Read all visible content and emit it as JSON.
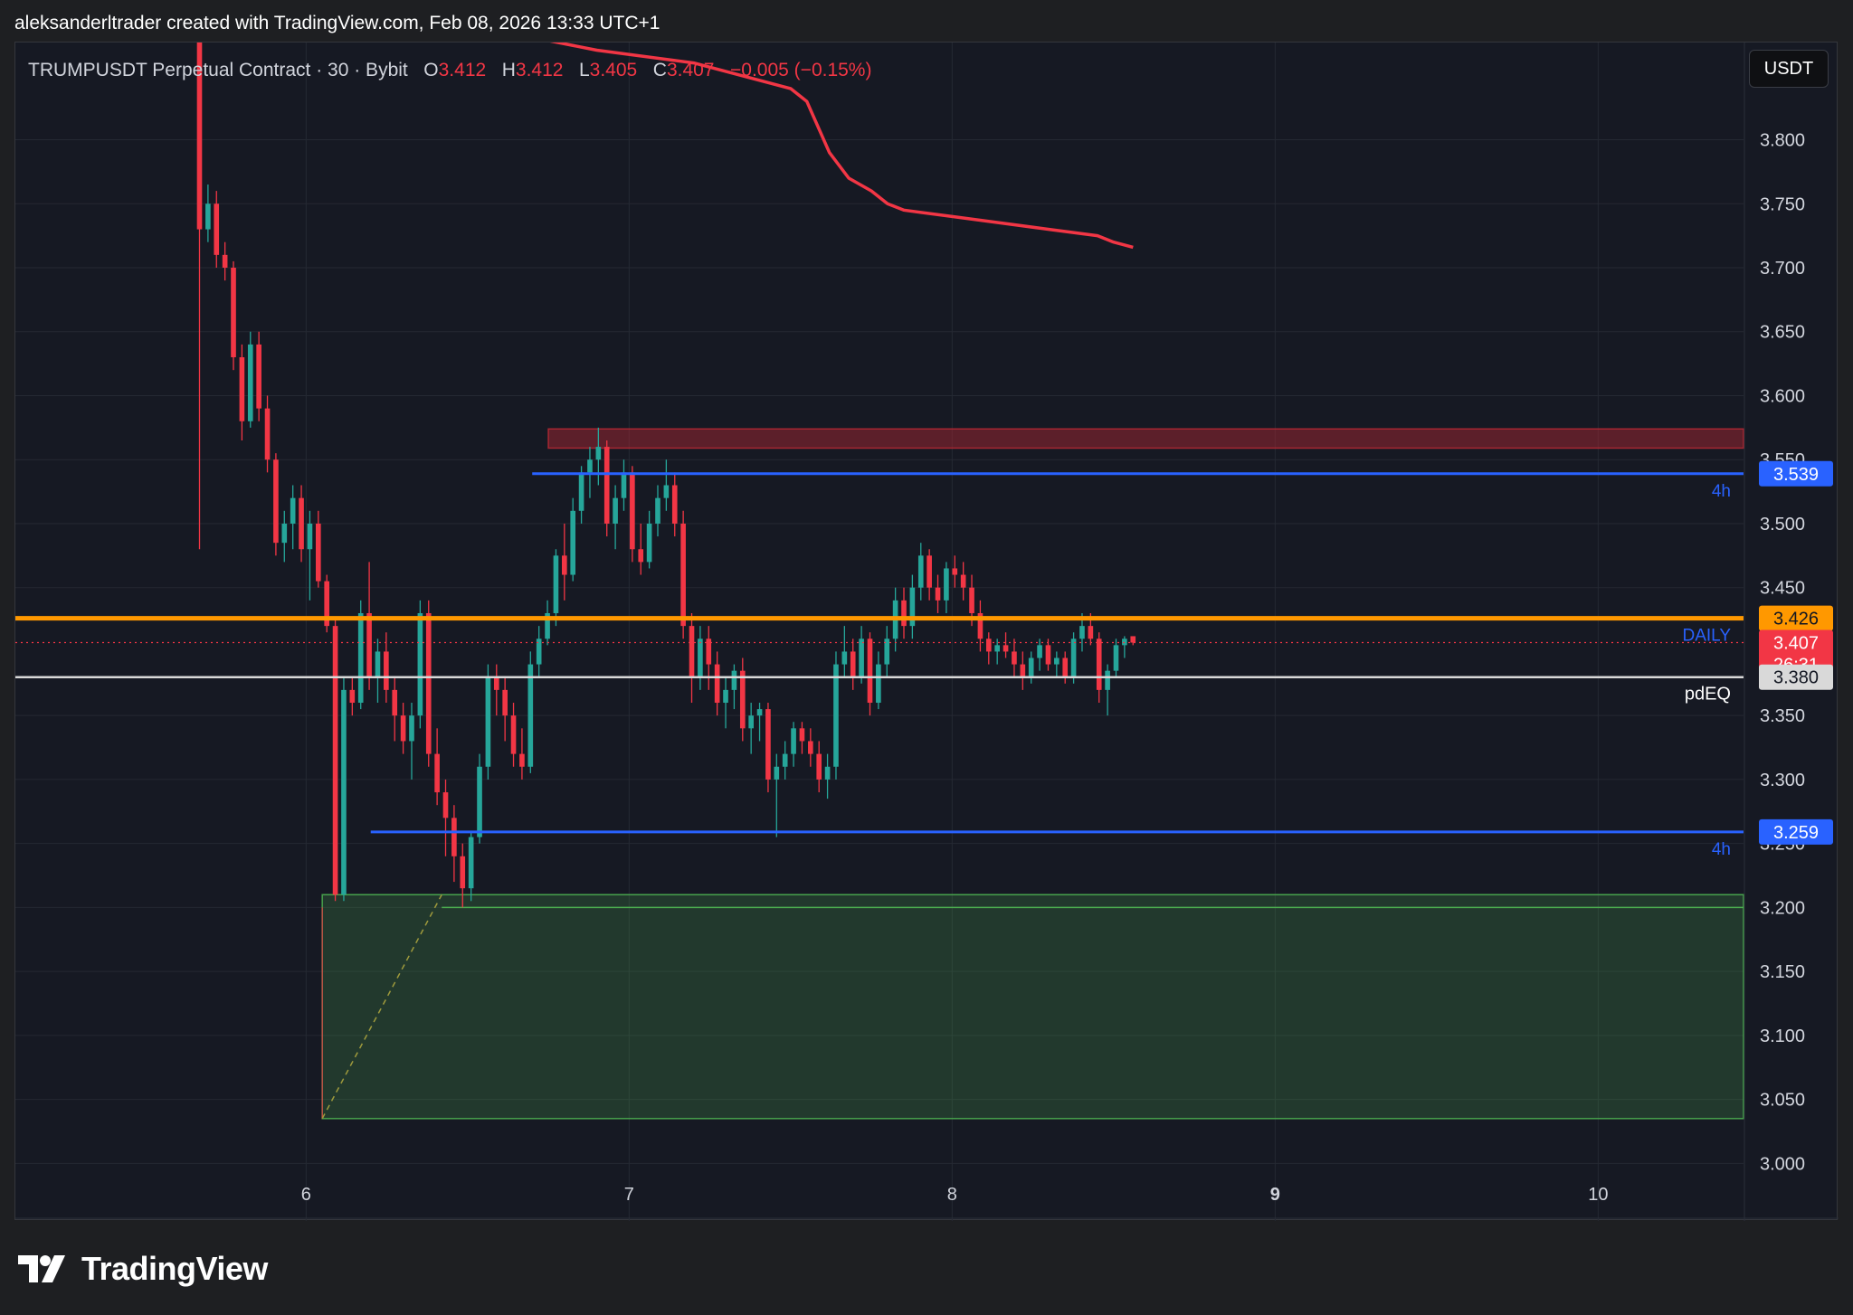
{
  "header": {
    "credit": "aleksanderltrader created with TradingView.com, Feb 08, 2026 13:33 UTC+1"
  },
  "legend": {
    "symbol": "TRUMPUSDT Perpetual Contract · 30 · Bybit",
    "o_label": "O",
    "o_value": "3.412",
    "h_label": "H",
    "h_value": "3.412",
    "l_label": "L",
    "l_value": "3.405",
    "c_label": "C",
    "c_value": "3.407",
    "change": "−0.005 (−0.15%)"
  },
  "currency_button": "USDT",
  "footer": {
    "brand": "TradingView"
  },
  "colors": {
    "background": "#161923",
    "up": "#26a69a",
    "down": "#f23645",
    "grid": "#252933",
    "ma": "#f23645",
    "daily_level": "#ff9800",
    "four_h_level": "#2962ff",
    "pdeq": "#d9d9d9",
    "demand_zone": "#4caf50",
    "supply_zone": "#b22833"
  },
  "chart_data": {
    "type": "candlestick",
    "timeframe": "30",
    "x_axis": {
      "ticks": [
        {
          "value": 6,
          "label": "6"
        },
        {
          "value": 7,
          "label": "7"
        },
        {
          "value": 8,
          "label": "8"
        },
        {
          "value": 9,
          "label": "9",
          "bold": true
        },
        {
          "value": 10,
          "label": "10"
        }
      ],
      "range": [
        5.1,
        10.45
      ]
    },
    "y_axis": {
      "range": [
        2.955,
        3.876
      ],
      "ticks": [
        "3.800",
        "3.750",
        "3.700",
        "3.650",
        "3.600",
        "3.550",
        "3.500",
        "3.450",
        "3.350",
        "3.300",
        "3.250",
        "3.200",
        "3.150",
        "3.100",
        "3.050",
        "3.000"
      ]
    },
    "ohlc_ohlc_points": [
      [
        3.9,
        3.905,
        3.48,
        3.73
      ],
      [
        3.73,
        3.765,
        3.72,
        3.75
      ],
      [
        3.75,
        3.76,
        3.7,
        3.71
      ],
      [
        3.71,
        3.72,
        3.69,
        3.7
      ],
      [
        3.7,
        3.705,
        3.62,
        3.63
      ],
      [
        3.63,
        3.64,
        3.565,
        3.58
      ],
      [
        3.58,
        3.65,
        3.575,
        3.64
      ],
      [
        3.64,
        3.65,
        3.58,
        3.59
      ],
      [
        3.59,
        3.6,
        3.54,
        3.55
      ],
      [
        3.55,
        3.555,
        3.475,
        3.485
      ],
      [
        3.485,
        3.51,
        3.47,
        3.5
      ],
      [
        3.5,
        3.53,
        3.48,
        3.52
      ],
      [
        3.52,
        3.53,
        3.47,
        3.48
      ],
      [
        3.48,
        3.51,
        3.44,
        3.5
      ],
      [
        3.5,
        3.51,
        3.45,
        3.455
      ],
      [
        3.455,
        3.46,
        3.415,
        3.42
      ],
      [
        3.42,
        3.425,
        3.205,
        3.21
      ],
      [
        3.21,
        3.38,
        3.205,
        3.37
      ],
      [
        3.37,
        3.38,
        3.35,
        3.36
      ],
      [
        3.36,
        3.44,
        3.355,
        3.43
      ],
      [
        3.43,
        3.47,
        3.37,
        3.38
      ],
      [
        3.38,
        3.41,
        3.36,
        3.4
      ],
      [
        3.4,
        3.415,
        3.36,
        3.37
      ],
      [
        3.37,
        3.38,
        3.33,
        3.35
      ],
      [
        3.35,
        3.36,
        3.32,
        3.33
      ],
      [
        3.33,
        3.36,
        3.3,
        3.35
      ],
      [
        3.35,
        3.44,
        3.34,
        3.43
      ],
      [
        3.43,
        3.44,
        3.31,
        3.32
      ],
      [
        3.32,
        3.34,
        3.28,
        3.29
      ],
      [
        3.29,
        3.3,
        3.24,
        3.27
      ],
      [
        3.27,
        3.28,
        3.22,
        3.24
      ],
      [
        3.24,
        3.25,
        3.2,
        3.215
      ],
      [
        3.215,
        3.26,
        3.205,
        3.255
      ],
      [
        3.255,
        3.32,
        3.25,
        3.31
      ],
      [
        3.31,
        3.39,
        3.3,
        3.38
      ],
      [
        3.38,
        3.39,
        3.35,
        3.37
      ],
      [
        3.37,
        3.38,
        3.33,
        3.35
      ],
      [
        3.35,
        3.36,
        3.31,
        3.32
      ],
      [
        3.32,
        3.34,
        3.3,
        3.31
      ],
      [
        3.31,
        3.4,
        3.305,
        3.39
      ],
      [
        3.39,
        3.42,
        3.38,
        3.41
      ],
      [
        3.41,
        3.44,
        3.405,
        3.43
      ],
      [
        3.43,
        3.48,
        3.42,
        3.475
      ],
      [
        3.475,
        3.5,
        3.44,
        3.46
      ],
      [
        3.46,
        3.52,
        3.455,
        3.51
      ],
      [
        3.51,
        3.545,
        3.5,
        3.54
      ],
      [
        3.54,
        3.56,
        3.52,
        3.55
      ],
      [
        3.55,
        3.575,
        3.53,
        3.56
      ],
      [
        3.56,
        3.565,
        3.49,
        3.5
      ],
      [
        3.5,
        3.53,
        3.48,
        3.52
      ],
      [
        3.52,
        3.55,
        3.51,
        3.54
      ],
      [
        3.54,
        3.545,
        3.47,
        3.48
      ],
      [
        3.48,
        3.5,
        3.46,
        3.47
      ],
      [
        3.47,
        3.51,
        3.465,
        3.5
      ],
      [
        3.5,
        3.53,
        3.49,
        3.52
      ],
      [
        3.52,
        3.55,
        3.51,
        3.53
      ],
      [
        3.53,
        3.54,
        3.49,
        3.5
      ],
      [
        3.5,
        3.51,
        3.41,
        3.42
      ],
      [
        3.42,
        3.43,
        3.36,
        3.38
      ],
      [
        3.38,
        3.42,
        3.37,
        3.41
      ],
      [
        3.41,
        3.42,
        3.37,
        3.39
      ],
      [
        3.39,
        3.4,
        3.35,
        3.36
      ],
      [
        3.36,
        3.38,
        3.34,
        3.37
      ],
      [
        3.37,
        3.39,
        3.355,
        3.385
      ],
      [
        3.385,
        3.395,
        3.33,
        3.34
      ],
      [
        3.34,
        3.36,
        3.32,
        3.35
      ],
      [
        3.35,
        3.36,
        3.33,
        3.355
      ],
      [
        3.355,
        3.36,
        3.29,
        3.3
      ],
      [
        3.3,
        3.32,
        3.255,
        3.31
      ],
      [
        3.31,
        3.33,
        3.3,
        3.32
      ],
      [
        3.32,
        3.345,
        3.31,
        3.34
      ],
      [
        3.34,
        3.345,
        3.32,
        3.33
      ],
      [
        3.33,
        3.34,
        3.31,
        3.32
      ],
      [
        3.32,
        3.33,
        3.29,
        3.3
      ],
      [
        3.3,
        3.32,
        3.285,
        3.31
      ],
      [
        3.31,
        3.4,
        3.3,
        3.39
      ],
      [
        3.39,
        3.42,
        3.38,
        3.4
      ],
      [
        3.4,
        3.41,
        3.37,
        3.38
      ],
      [
        3.38,
        3.42,
        3.375,
        3.41
      ],
      [
        3.41,
        3.415,
        3.35,
        3.36
      ],
      [
        3.36,
        3.4,
        3.355,
        3.39
      ],
      [
        3.39,
        3.42,
        3.38,
        3.41
      ],
      [
        3.41,
        3.45,
        3.4,
        3.44
      ],
      [
        3.44,
        3.45,
        3.41,
        3.42
      ],
      [
        3.42,
        3.46,
        3.41,
        3.45
      ],
      [
        3.45,
        3.485,
        3.44,
        3.475
      ],
      [
        3.475,
        3.48,
        3.44,
        3.45
      ],
      [
        3.45,
        3.46,
        3.43,
        3.44
      ],
      [
        3.44,
        3.47,
        3.43,
        3.465
      ],
      [
        3.465,
        3.475,
        3.45,
        3.46
      ],
      [
        3.46,
        3.47,
        3.44,
        3.45
      ],
      [
        3.45,
        3.46,
        3.42,
        3.43
      ],
      [
        3.43,
        3.44,
        3.4,
        3.41
      ],
      [
        3.41,
        3.415,
        3.39,
        3.4
      ],
      [
        3.4,
        3.41,
        3.39,
        3.405
      ],
      [
        3.405,
        3.415,
        3.395,
        3.4
      ],
      [
        3.4,
        3.41,
        3.38,
        3.39
      ],
      [
        3.39,
        3.4,
        3.37,
        3.38
      ],
      [
        3.38,
        3.4,
        3.375,
        3.395
      ],
      [
        3.395,
        3.41,
        3.385,
        3.405
      ],
      [
        3.405,
        3.41,
        3.385,
        3.39
      ],
      [
        3.39,
        3.4,
        3.38,
        3.395
      ],
      [
        3.395,
        3.4,
        3.375,
        3.38
      ],
      [
        3.38,
        3.415,
        3.375,
        3.41
      ],
      [
        3.41,
        3.43,
        3.4,
        3.42
      ],
      [
        3.42,
        3.43,
        3.405,
        3.41
      ],
      [
        3.41,
        3.415,
        3.36,
        3.37
      ],
      [
        3.37,
        3.39,
        3.35,
        3.385
      ],
      [
        3.385,
        3.41,
        3.38,
        3.405
      ],
      [
        3.405,
        3.412,
        3.395,
        3.41
      ],
      [
        3.412,
        3.412,
        3.405,
        3.407
      ]
    ],
    "moving_average": [
      [
        5.1,
        3.9
      ],
      [
        6.5,
        3.89
      ],
      [
        6.9,
        3.87
      ],
      [
        7.2,
        3.86
      ],
      [
        7.5,
        3.84
      ],
      [
        7.55,
        3.83
      ],
      [
        7.62,
        3.79
      ],
      [
        7.68,
        3.77
      ],
      [
        7.75,
        3.76
      ],
      [
        7.8,
        3.75
      ],
      [
        7.85,
        3.745
      ],
      [
        8.0,
        3.74
      ],
      [
        8.15,
        3.735
      ],
      [
        8.3,
        3.73
      ],
      [
        8.45,
        3.725
      ],
      [
        8.5,
        3.72
      ],
      [
        8.56,
        3.716
      ]
    ],
    "levels": [
      {
        "name": "DAILY",
        "price": 3.426,
        "label": "DAILY",
        "badge": "3.426"
      },
      {
        "name": "4h-upper",
        "price": 3.539,
        "label": "4h",
        "badge": "3.539",
        "x_start": 6.7
      },
      {
        "name": "4h-lower",
        "price": 3.259,
        "label": "4h",
        "badge": "3.259",
        "x_start": 6.2
      },
      {
        "name": "pdEQ",
        "price": 3.38,
        "label": "pdEQ",
        "badge": "3.380"
      }
    ],
    "last_price": {
      "price": 3.407,
      "badge": "3.407",
      "countdown": "26:31"
    },
    "zones": [
      {
        "name": "supply-zone",
        "top": 3.574,
        "bottom": 3.559,
        "x_start": 6.75
      },
      {
        "name": "demand-zone",
        "top": 3.21,
        "bottom": 3.035,
        "x_start": 6.05
      }
    ],
    "trendline": {
      "from": [
        6.05,
        3.035
      ],
      "to": [
        6.42,
        3.21
      ]
    }
  }
}
